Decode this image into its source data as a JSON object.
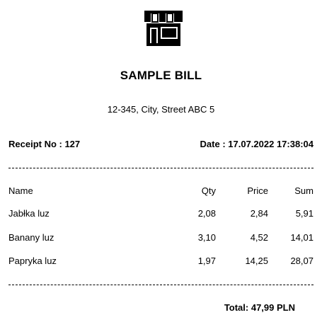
{
  "receipt": {
    "logo_icon": "shop-storefront-icon",
    "title": "SAMPLE BILL",
    "address": "12-345, City, Street ABC 5",
    "receipt_no": "Receipt No : 127",
    "date": "Date : 17.07.2022 17:38:04"
  },
  "table": {
    "headers": {
      "name": "Name",
      "qty": "Qty",
      "price": "Price",
      "sum": "Sum"
    },
    "rows": [
      {
        "name": "Jabłka luz",
        "qty": "2,08",
        "price": "2,84",
        "sum": "5,91"
      },
      {
        "name": "Banany luz",
        "qty": "3,10",
        "price": "4,52",
        "sum": "14,01"
      },
      {
        "name": "Papryka luz",
        "qty": "1,97",
        "price": "14,25",
        "sum": "28,07"
      }
    ]
  },
  "total": "Total: 47,99 PLN",
  "colors": {
    "text": "#000000",
    "background": "#ffffff"
  }
}
